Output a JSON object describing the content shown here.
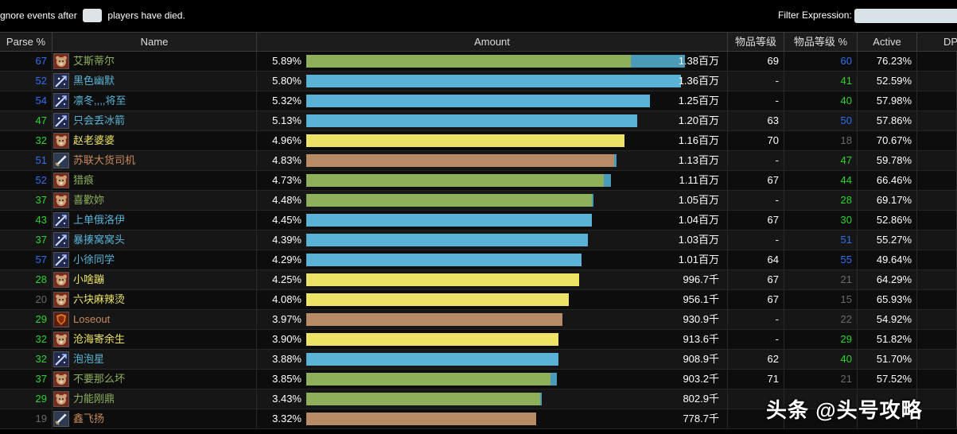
{
  "topbar": {
    "ignore_prefix": "gnore events after",
    "ignore_value": "",
    "ignore_suffix": "players have died.",
    "filter_label": "Filter Expression:",
    "filter_value": ""
  },
  "columns": {
    "parse": "Parse %",
    "name": "Name",
    "amount": "Amount",
    "ilvl": "物品等级",
    "ilvl_pct": "物品等级 %",
    "active": "Active",
    "dps": "DP"
  },
  "colors": {
    "rank_blue": "#2f6ff2",
    "rank_green": "#2bd62b",
    "rank_gray": "#6b6b6b",
    "druid": "#8eb05a",
    "mage": "#5ab3d6",
    "warrior_name": "#c98a5a",
    "warrior_bar": "#b78b65",
    "rogue": "#ede467",
    "secondary_bar": "#4a9bb8",
    "watermark": "#ffffff"
  },
  "rows": [
    {
      "parse": "67",
      "parse_color": "#2f6ff2",
      "icon": "druid-bear-icon",
      "name": "艾斯蒂尔",
      "name_color": "#8eb05a",
      "pct": "5.89%",
      "bar": 0.785,
      "bar2": 0.13,
      "bar_color": "#8eb05a",
      "bar2_color": "#4a9bb8",
      "amount": "1.38百万",
      "ilvl": "69",
      "ilvl_pct": "60",
      "ilvl_pct_color": "#2f6ff2",
      "active": "76.23%"
    },
    {
      "parse": "52",
      "parse_color": "#2f6ff2",
      "icon": "frost-icon",
      "name": "黑色幽默",
      "name_color": "#5ab3d6",
      "pct": "5.80%",
      "bar": 0.905,
      "bar2": 0,
      "bar_color": "#5ab3d6",
      "bar2_color": "#4a9bb8",
      "amount": "1.36百万",
      "ilvl": "-",
      "ilvl_pct": "41",
      "ilvl_pct_color": "#2bd62b",
      "active": "52.59%"
    },
    {
      "parse": "54",
      "parse_color": "#2f6ff2",
      "icon": "frost-icon",
      "name": "凛冬,,,,将至",
      "name_color": "#5ab3d6",
      "pct": "5.32%",
      "bar": 0.83,
      "bar2": 0,
      "bar_color": "#5ab3d6",
      "bar2_color": "#4a9bb8",
      "amount": "1.25百万",
      "ilvl": "-",
      "ilvl_pct": "40",
      "ilvl_pct_color": "#2bd62b",
      "active": "57.98%"
    },
    {
      "parse": "47",
      "parse_color": "#2bd62b",
      "icon": "frost-icon",
      "name": "只会丢冰箭",
      "name_color": "#5ab3d6",
      "pct": "5.13%",
      "bar": 0.8,
      "bar2": 0,
      "bar_color": "#5ab3d6",
      "bar2_color": "#4a9bb8",
      "amount": "1.20百万",
      "ilvl": "63",
      "ilvl_pct": "50",
      "ilvl_pct_color": "#2f6ff2",
      "active": "57.86%"
    },
    {
      "parse": "32",
      "parse_color": "#2bd62b",
      "icon": "druid-bear-icon",
      "name": "赵老婆婆",
      "name_color": "#ede467",
      "pct": "4.96%",
      "bar": 0.77,
      "bar2": 0,
      "bar_color": "#ede467",
      "bar2_color": "#4a9bb8",
      "amount": "1.16百万",
      "ilvl": "70",
      "ilvl_pct": "18",
      "ilvl_pct_color": "#6b6b6b",
      "active": "70.67%"
    },
    {
      "parse": "51",
      "parse_color": "#2f6ff2",
      "icon": "sword-icon",
      "name": "苏联大货司机",
      "name_color": "#c98a5a",
      "pct": "4.83%",
      "bar": 0.745,
      "bar2": 0.005,
      "bar_color": "#b78b65",
      "bar2_color": "#4a9bb8",
      "amount": "1.13百万",
      "ilvl": "-",
      "ilvl_pct": "47",
      "ilvl_pct_color": "#2bd62b",
      "active": "59.78%"
    },
    {
      "parse": "52",
      "parse_color": "#2f6ff2",
      "icon": "druid-bear-icon",
      "name": "猎痕",
      "name_color": "#8eb05a",
      "pct": "4.73%",
      "bar": 0.72,
      "bar2": 0.018,
      "bar_color": "#8eb05a",
      "bar2_color": "#4a9bb8",
      "amount": "1.11百万",
      "ilvl": "67",
      "ilvl_pct": "44",
      "ilvl_pct_color": "#2bd62b",
      "active": "66.46%"
    },
    {
      "parse": "37",
      "parse_color": "#2bd62b",
      "icon": "druid-bear-icon",
      "name": "喜歡妳",
      "name_color": "#8eb05a",
      "pct": "4.48%",
      "bar": 0.69,
      "bar2": 0.004,
      "bar_color": "#8eb05a",
      "bar2_color": "#4a9bb8",
      "amount": "1.05百万",
      "ilvl": "-",
      "ilvl_pct": "28",
      "ilvl_pct_color": "#2bd62b",
      "active": "69.17%"
    },
    {
      "parse": "43",
      "parse_color": "#2bd62b",
      "icon": "frost-icon",
      "name": "上单俄洛伊",
      "name_color": "#5ab3d6",
      "pct": "4.45%",
      "bar": 0.69,
      "bar2": 0,
      "bar_color": "#5ab3d6",
      "bar2_color": "#4a9bb8",
      "amount": "1.04百万",
      "ilvl": "67",
      "ilvl_pct": "30",
      "ilvl_pct_color": "#2bd62b",
      "active": "52.86%"
    },
    {
      "parse": "37",
      "parse_color": "#2bd62b",
      "icon": "frost-icon",
      "name": "暴揍窝窝头",
      "name_color": "#5ab3d6",
      "pct": "4.39%",
      "bar": 0.68,
      "bar2": 0,
      "bar_color": "#5ab3d6",
      "bar2_color": "#4a9bb8",
      "amount": "1.03百万",
      "ilvl": "-",
      "ilvl_pct": "51",
      "ilvl_pct_color": "#2f6ff2",
      "active": "55.27%"
    },
    {
      "parse": "57",
      "parse_color": "#2f6ff2",
      "icon": "frost-icon",
      "name": "小徐同学",
      "name_color": "#5ab3d6",
      "pct": "4.29%",
      "bar": 0.665,
      "bar2": 0,
      "bar_color": "#5ab3d6",
      "bar2_color": "#4a9bb8",
      "amount": "1.01百万",
      "ilvl": "64",
      "ilvl_pct": "55",
      "ilvl_pct_color": "#2f6ff2",
      "active": "49.64%"
    },
    {
      "parse": "28",
      "parse_color": "#2bd62b",
      "icon": "druid-bear-icon",
      "name": "小啥蹦",
      "name_color": "#ede467",
      "pct": "4.25%",
      "bar": 0.66,
      "bar2": 0,
      "bar_color": "#ede467",
      "bar2_color": "#4a9bb8",
      "amount": "996.7千",
      "ilvl": "67",
      "ilvl_pct": "21",
      "ilvl_pct_color": "#6b6b6b",
      "active": "64.29%"
    },
    {
      "parse": "20",
      "parse_color": "#6b6b6b",
      "icon": "druid-bear-icon",
      "name": "六块麻辣烫",
      "name_color": "#ede467",
      "pct": "4.08%",
      "bar": 0.635,
      "bar2": 0,
      "bar_color": "#ede467",
      "bar2_color": "#4a9bb8",
      "amount": "956.1千",
      "ilvl": "67",
      "ilvl_pct": "15",
      "ilvl_pct_color": "#6b6b6b",
      "active": "65.93%"
    },
    {
      "parse": "29",
      "parse_color": "#2bd62b",
      "icon": "shield-icon",
      "name": "Loseout",
      "name_color": "#c98a5a",
      "pct": "3.97%",
      "bar": 0.62,
      "bar2": 0,
      "bar_color": "#b78b65",
      "bar2_color": "#4a9bb8",
      "amount": "930.9千",
      "ilvl": "-",
      "ilvl_pct": "22",
      "ilvl_pct_color": "#6b6b6b",
      "active": "54.92%"
    },
    {
      "parse": "32",
      "parse_color": "#2bd62b",
      "icon": "druid-bear-icon",
      "name": "沧海寄余生",
      "name_color": "#ede467",
      "pct": "3.90%",
      "bar": 0.61,
      "bar2": 0,
      "bar_color": "#ede467",
      "bar2_color": "#4a9bb8",
      "amount": "913.6千",
      "ilvl": "-",
      "ilvl_pct": "29",
      "ilvl_pct_color": "#2bd62b",
      "active": "51.82%"
    },
    {
      "parse": "32",
      "parse_color": "#2bd62b",
      "icon": "frost-icon",
      "name": "泡泡星",
      "name_color": "#5ab3d6",
      "pct": "3.88%",
      "bar": 0.61,
      "bar2": 0,
      "bar_color": "#5ab3d6",
      "bar2_color": "#4a9bb8",
      "amount": "908.9千",
      "ilvl": "62",
      "ilvl_pct": "40",
      "ilvl_pct_color": "#2bd62b",
      "active": "51.70%"
    },
    {
      "parse": "37",
      "parse_color": "#2bd62b",
      "icon": "druid-bear-icon",
      "name": "不要那么坏",
      "name_color": "#8eb05a",
      "pct": "3.85%",
      "bar": 0.59,
      "bar2": 0.015,
      "bar_color": "#8eb05a",
      "bar2_color": "#4a9bb8",
      "amount": "903.2千",
      "ilvl": "71",
      "ilvl_pct": "21",
      "ilvl_pct_color": "#6b6b6b",
      "active": "57.52%"
    },
    {
      "parse": "29",
      "parse_color": "#2bd62b",
      "icon": "druid-bear-icon",
      "name": "力能刚鼎",
      "name_color": "#8eb05a",
      "pct": "3.43%",
      "bar": 0.565,
      "bar2": 0.004,
      "bar_color": "#8eb05a",
      "bar2_color": "#4a9bb8",
      "amount": "802.9千",
      "ilvl": "",
      "ilvl_pct": "",
      "ilvl_pct_color": "#2bd62b",
      "active": ""
    },
    {
      "parse": "19",
      "parse_color": "#6b6b6b",
      "icon": "sword-icon",
      "name": "鑫飞扬",
      "name_color": "#c98a5a",
      "pct": "3.32%",
      "bar": 0.555,
      "bar2": 0,
      "bar_color": "#b78b65",
      "bar2_color": "#4a9bb8",
      "amount": "778.7千",
      "ilvl": "",
      "ilvl_pct": "",
      "ilvl_pct_color": "#2bd62b",
      "active": ""
    }
  ],
  "watermark": "头条 @头号攻略"
}
